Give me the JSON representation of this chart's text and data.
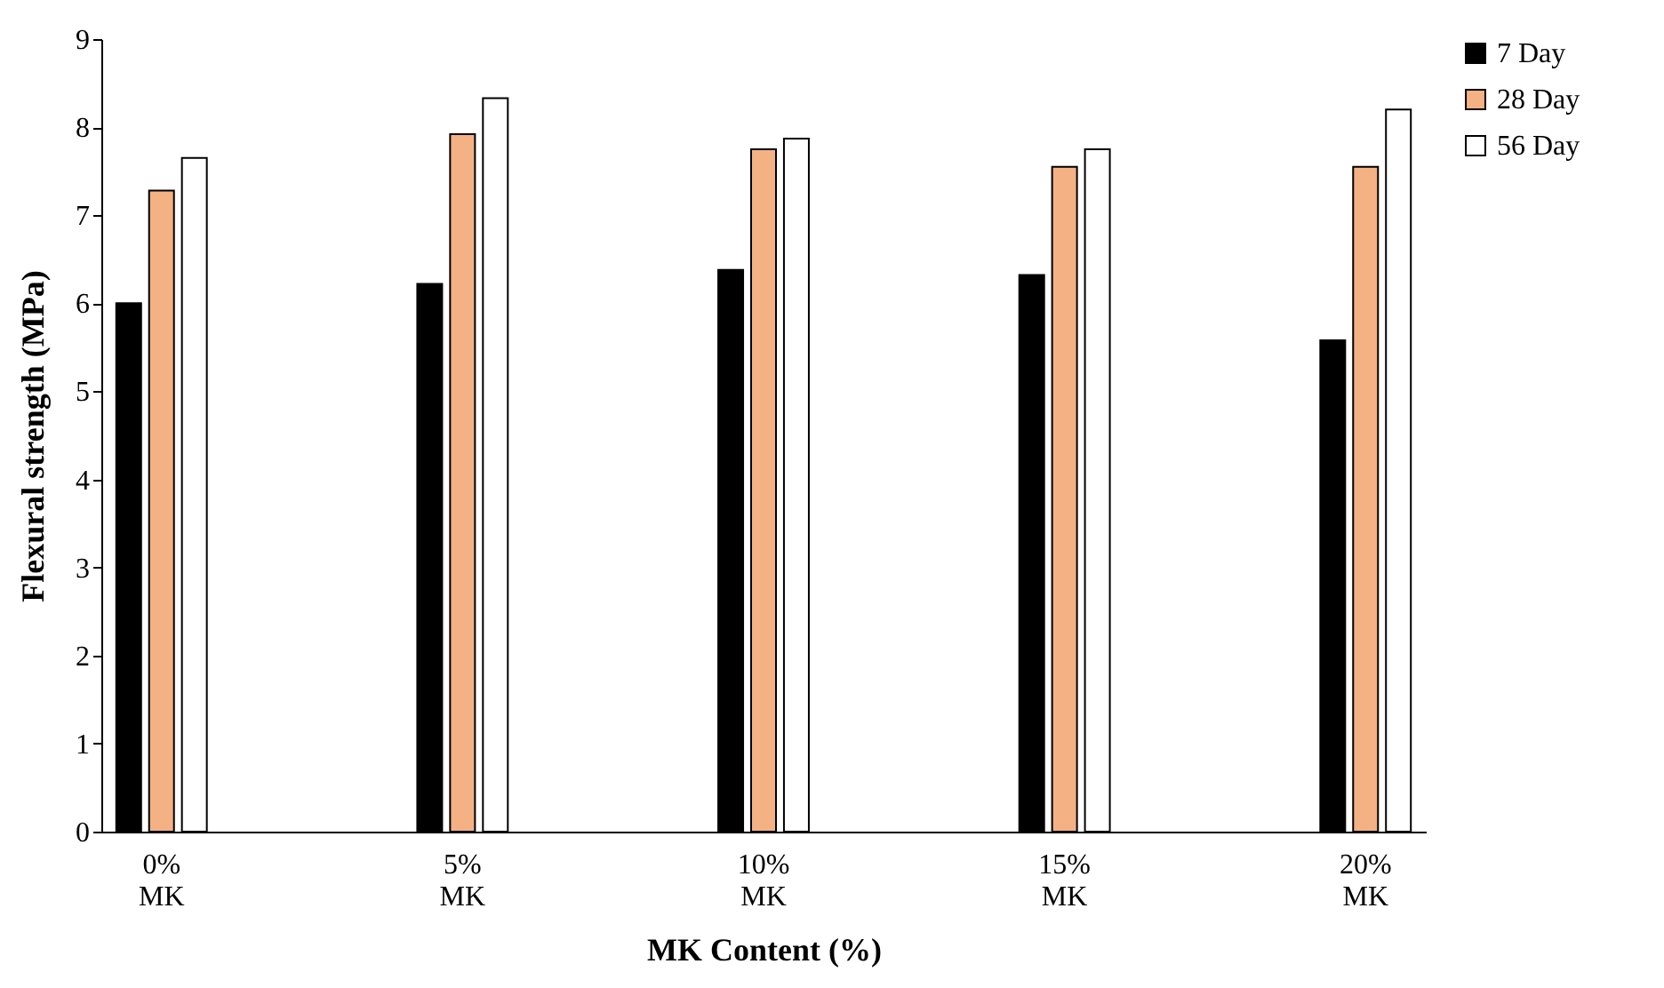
{
  "chart_data": {
    "type": "bar",
    "xlabel": "MK Content (%)",
    "ylabel": "Flexural strength (MPa)",
    "categories": [
      "0% MK",
      "5% MK",
      "10% MK",
      "15% MK",
      "20% MK"
    ],
    "series": [
      {
        "name": "7 Day",
        "color": "#000000",
        "values": [
          6.0,
          6.22,
          6.38,
          6.32,
          5.58
        ]
      },
      {
        "name": "28 Day",
        "color": "#f4b183",
        "values": [
          7.28,
          7.92,
          7.75,
          7.55,
          7.55
        ]
      },
      {
        "name": "56 Day",
        "color": "#ffffff",
        "values": [
          7.65,
          8.33,
          7.87,
          7.75,
          8.2
        ]
      }
    ],
    "ylim": [
      0,
      9
    ],
    "yticks": [
      0,
      1,
      2,
      3,
      4,
      5,
      6,
      7,
      8,
      9
    ],
    "grid": false,
    "legend": "right"
  }
}
